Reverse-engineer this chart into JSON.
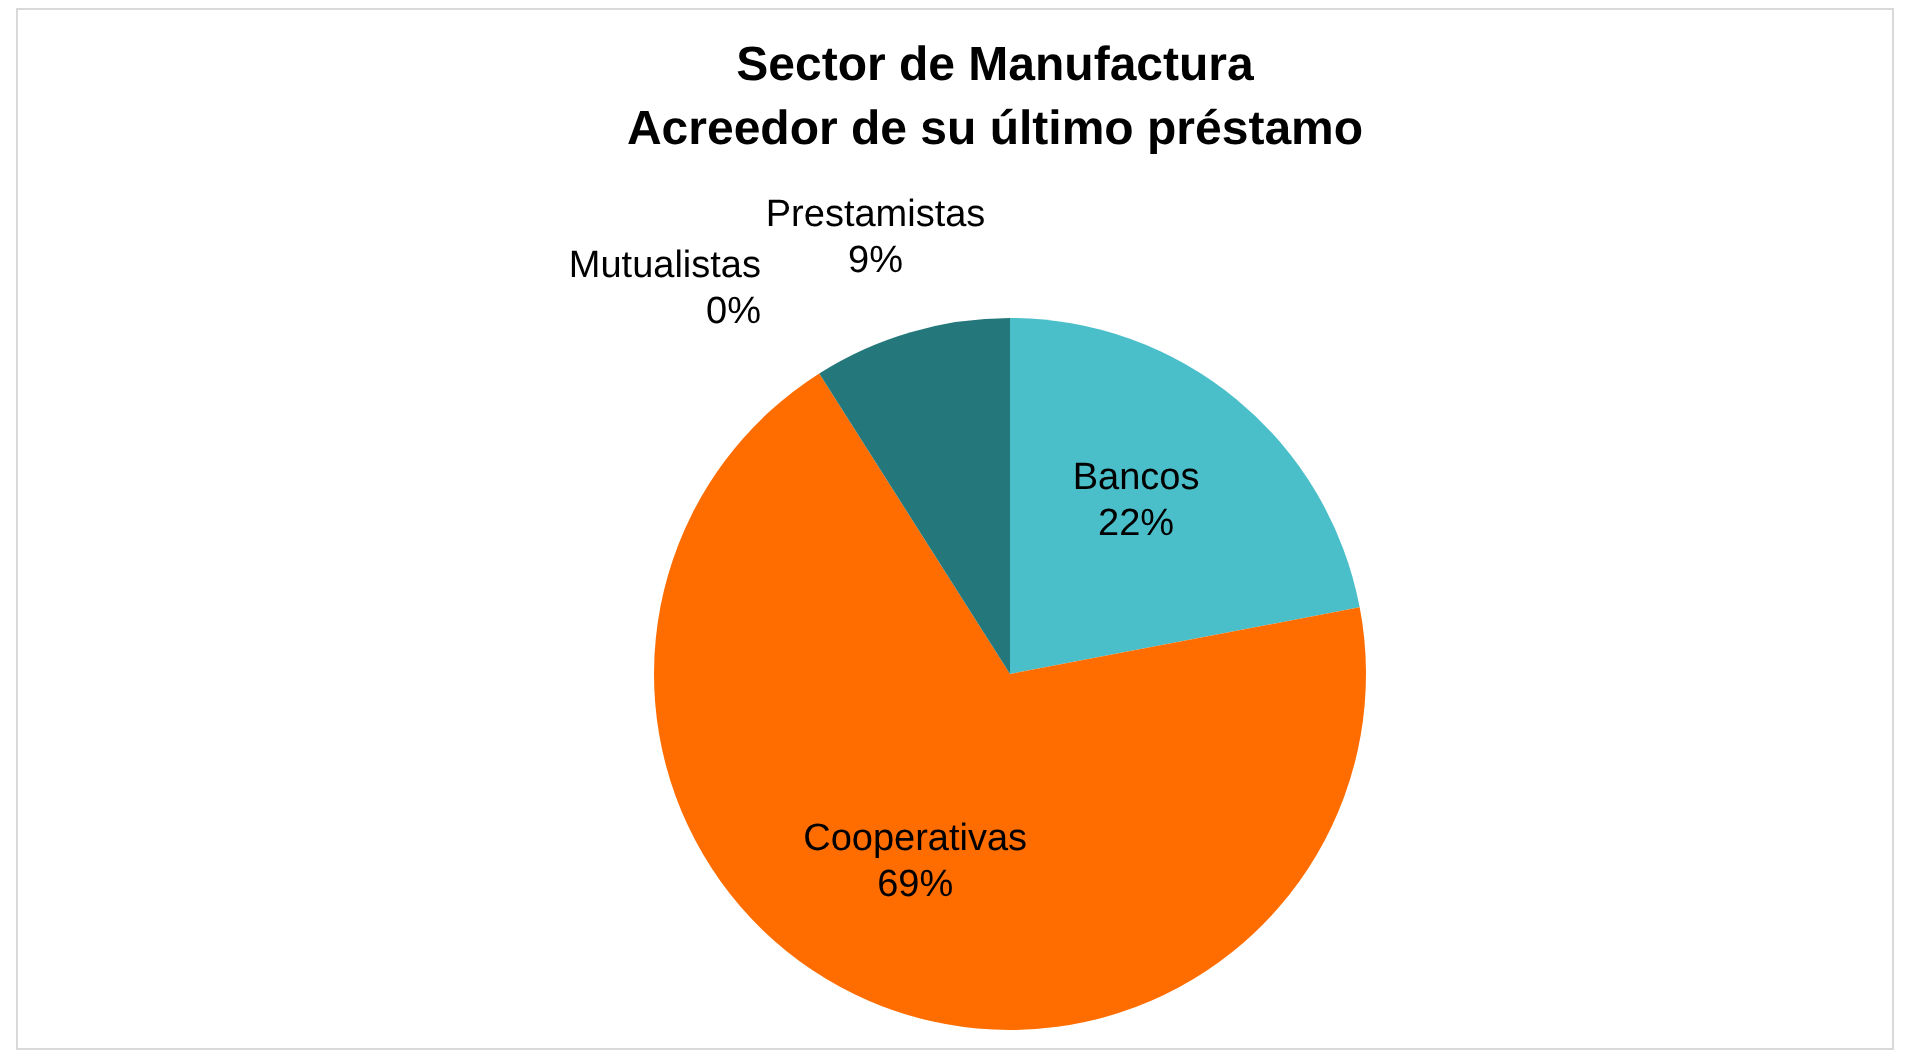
{
  "chart_data": {
    "type": "pie",
    "title": "Sector de Manufactura\nAcreedor de su último préstamo",
    "categories": [
      "Bancos",
      "Cooperativas",
      "Mutualistas",
      "Prestamistas"
    ],
    "values": [
      22,
      69,
      0,
      9
    ],
    "value_labels": [
      "22%",
      "69%",
      "0%",
      "9%"
    ],
    "colors": [
      "#4bbfc9",
      "#ff6d00",
      "#a5a5a5",
      "#24777a"
    ]
  }
}
